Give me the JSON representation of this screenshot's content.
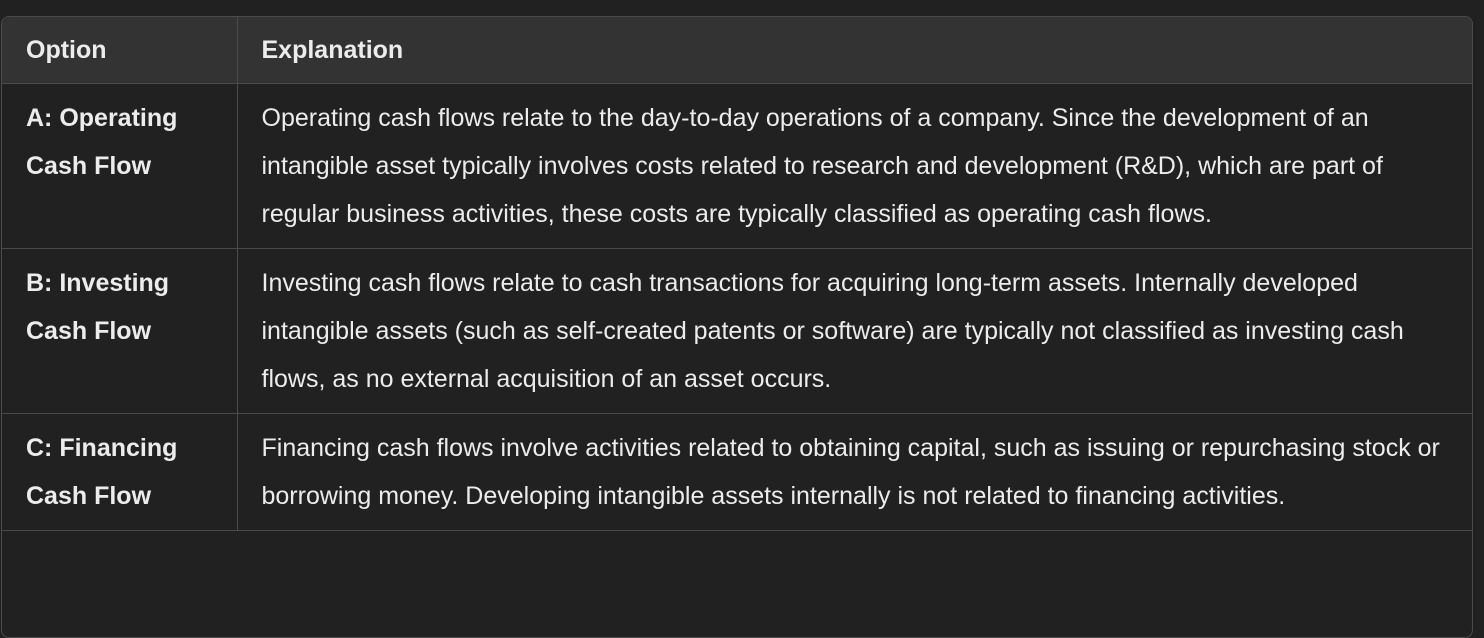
{
  "table": {
    "headers": {
      "option": "Option",
      "explanation": "Explanation"
    },
    "rows": [
      {
        "option": "A: Operating Cash Flow",
        "explanation": "Operating cash flows relate to the day-to-day operations of a company. Since the development of an intangible asset typically involves costs related to research and development (R&D), which are part of regular business activities, these costs are typically classified as operating cash flows."
      },
      {
        "option": "B: Investing Cash Flow",
        "explanation": "Investing cash flows relate to cash transactions for acquiring long-term assets. Internally developed intangible assets (such as self-created patents or software) are typically not classified as investing cash flows, as no external acquisition of an asset occurs."
      },
      {
        "option": "C: Financing Cash Flow",
        "explanation": "Financing cash flows involve activities related to obtaining capital, such as issuing or repurchasing stock or borrowing money. Developing intangible assets internally is not related to financing activities."
      }
    ]
  }
}
